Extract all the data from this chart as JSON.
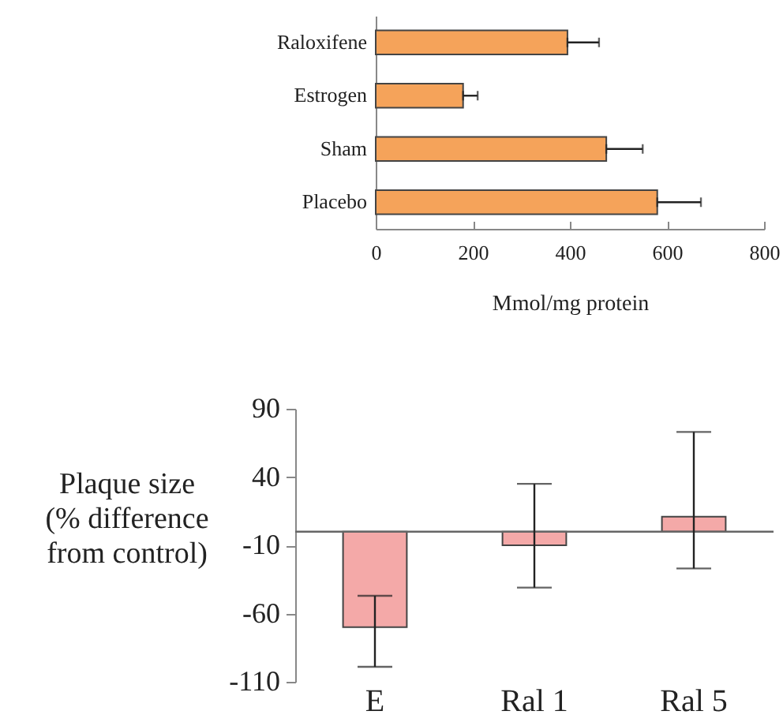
{
  "chart_data": [
    {
      "type": "bar",
      "orientation": "horizontal",
      "xlabel": "Mmol/mg protein",
      "categories": [
        "Raloxifene",
        "Estrogen",
        "Sham",
        "Placebo"
      ],
      "values": [
        395,
        180,
        475,
        580
      ],
      "errors": [
        [
          395,
          460
        ],
        [
          180,
          210
        ],
        [
          475,
          550
        ],
        [
          580,
          670
        ]
      ],
      "color": "#f5a35a",
      "xlim": [
        0,
        800
      ],
      "xticks": [
        0,
        200,
        400,
        600,
        800
      ],
      "grid": false
    },
    {
      "type": "bar",
      "ylabel": "Plaque size (% difference from control)",
      "categories": [
        "E",
        "Ral 1",
        "Ral 5"
      ],
      "values": [
        -70,
        -10,
        11
      ],
      "errors": [
        [
          -99,
          -47
        ],
        [
          -41,
          35
        ],
        [
          -27,
          73
        ]
      ],
      "color": "#f4a9a8",
      "ylim": [
        -110,
        90
      ],
      "yticks": [
        -110,
        -60,
        -10,
        40,
        90
      ],
      "ref_lines": [
        {
          "axis": "y",
          "value": 0
        }
      ],
      "grid": false
    }
  ]
}
